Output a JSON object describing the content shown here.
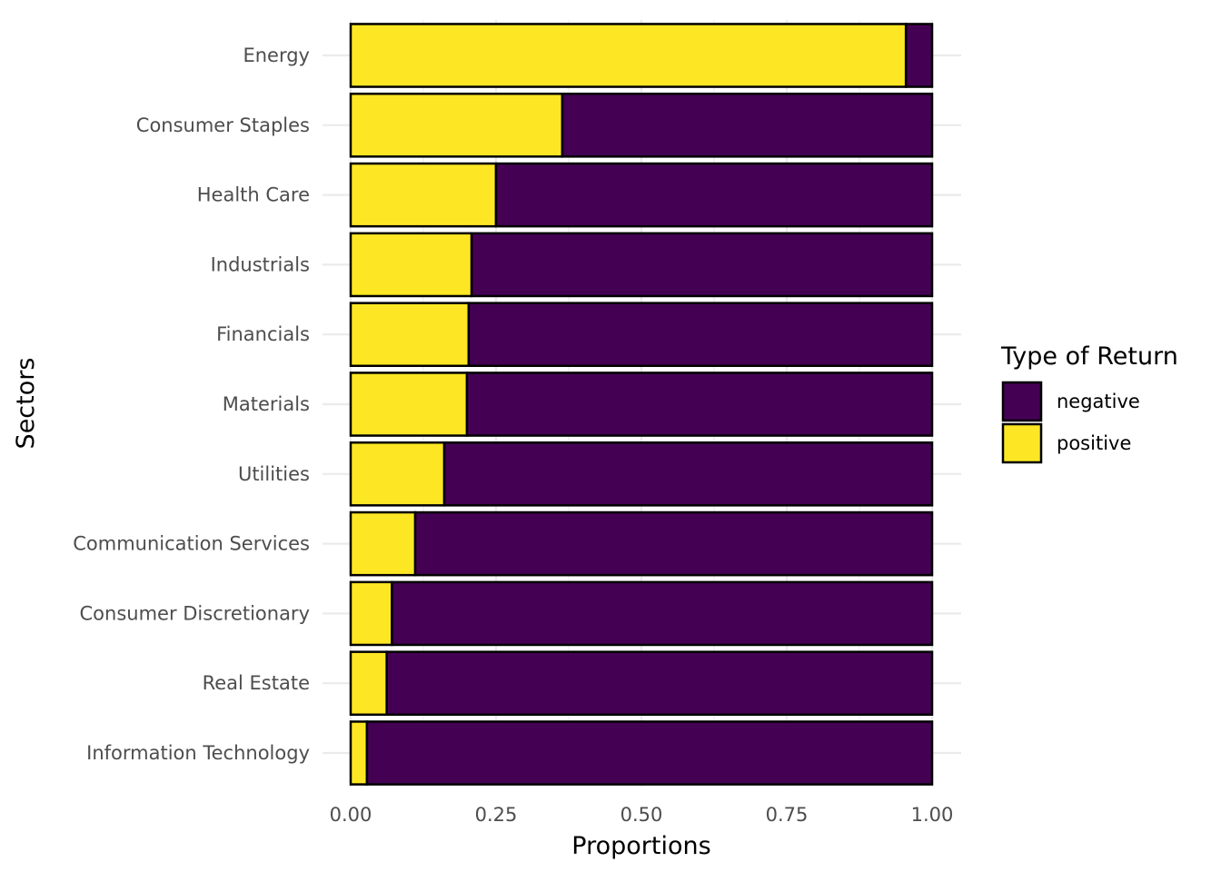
{
  "chart_data": {
    "type": "bar",
    "orientation": "horizontal",
    "stacked": true,
    "categories": [
      "Energy",
      "Consumer Staples",
      "Health Care",
      "Industrials",
      "Financials",
      "Materials",
      "Utilities",
      "Communication Services",
      "Consumer Discretionary",
      "Real Estate",
      "Information Technology"
    ],
    "series": [
      {
        "name": "positive",
        "color": "#FDE725",
        "values": [
          0.955,
          0.364,
          0.25,
          0.208,
          0.203,
          0.2,
          0.161,
          0.111,
          0.071,
          0.062,
          0.028
        ]
      },
      {
        "name": "negative",
        "color": "#440154",
        "values": [
          0.045,
          0.636,
          0.75,
          0.792,
          0.797,
          0.8,
          0.839,
          0.889,
          0.929,
          0.938,
          0.972
        ]
      }
    ],
    "xlabel": "Proportions",
    "ylabel": "Sectors",
    "xlim": [
      0,
      1
    ],
    "xticks": [
      0,
      0.25,
      0.5,
      0.75,
      1
    ],
    "xtick_labels": [
      "0.00",
      "0.25",
      "0.50",
      "0.75",
      "1.00"
    ],
    "legend": {
      "title": "Type of Return",
      "placement": "right",
      "entries": [
        "negative",
        "positive"
      ]
    },
    "grid": true
  }
}
